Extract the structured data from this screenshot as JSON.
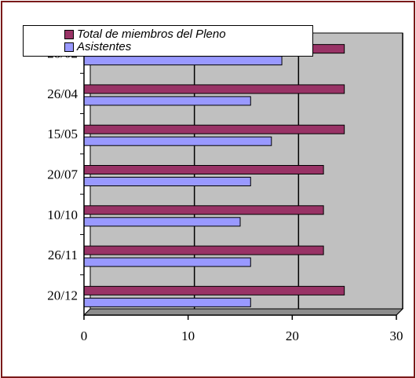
{
  "chart_data": {
    "type": "bar",
    "orientation": "horizontal",
    "categories": [
      "28/02",
      "26/04",
      "15/05",
      "20/07",
      "10/10",
      "26/11",
      "20/12"
    ],
    "series": [
      {
        "name": "Total de miembros del Pleno",
        "color": "#993366",
        "values": [
          25,
          25,
          25,
          23,
          23,
          23,
          25
        ]
      },
      {
        "name": "Asistentes",
        "color": "#9999ff",
        "values": [
          19,
          16,
          18,
          16,
          15,
          16,
          16
        ]
      }
    ],
    "xlim": [
      0,
      30
    ],
    "xticks": [
      "0",
      "10",
      "20",
      "30"
    ],
    "grid": "vertical",
    "plot_background": "#c0c0c0",
    "legend_position": "top-left"
  }
}
